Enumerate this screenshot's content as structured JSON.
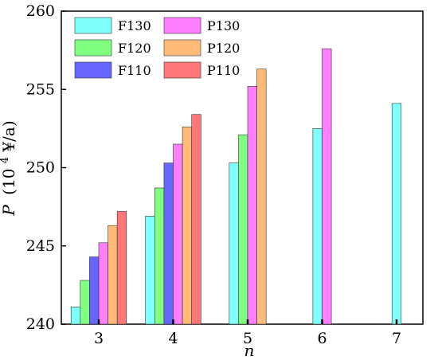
{
  "chart_data": {
    "type": "bar",
    "xlabel": "n",
    "ylabel_var": "P",
    "ylabel_unit_pre": "(10",
    "ylabel_unit_sup": "4",
    "ylabel_unit_post": "¥/a)",
    "ylim": [
      240,
      260
    ],
    "yticks": [
      "240",
      "245",
      "250",
      "255",
      "260"
    ],
    "categories": [
      "3",
      "4",
      "5",
      "6",
      "7"
    ],
    "legend_position": "top-left",
    "grid": false,
    "series": [
      {
        "name": "F130",
        "color": "#80FFFF",
        "values": [
          241.1,
          246.9,
          250.3,
          252.5,
          254.1
        ]
      },
      {
        "name": "F120",
        "color": "#80FF80",
        "values": [
          242.8,
          248.7,
          252.1,
          null,
          null
        ]
      },
      {
        "name": "F110",
        "color": "#6666FF",
        "values": [
          244.3,
          250.3,
          null,
          null,
          null
        ]
      },
      {
        "name": "P130",
        "color": "#FF80FF",
        "values": [
          245.2,
          251.5,
          255.2,
          257.6,
          null
        ]
      },
      {
        "name": "P120",
        "color": "#FFBB77",
        "values": [
          246.3,
          252.6,
          256.3,
          null,
          null
        ]
      },
      {
        "name": "P110",
        "color": "#FF7777",
        "values": [
          247.2,
          253.4,
          null,
          null,
          null
        ]
      }
    ]
  }
}
